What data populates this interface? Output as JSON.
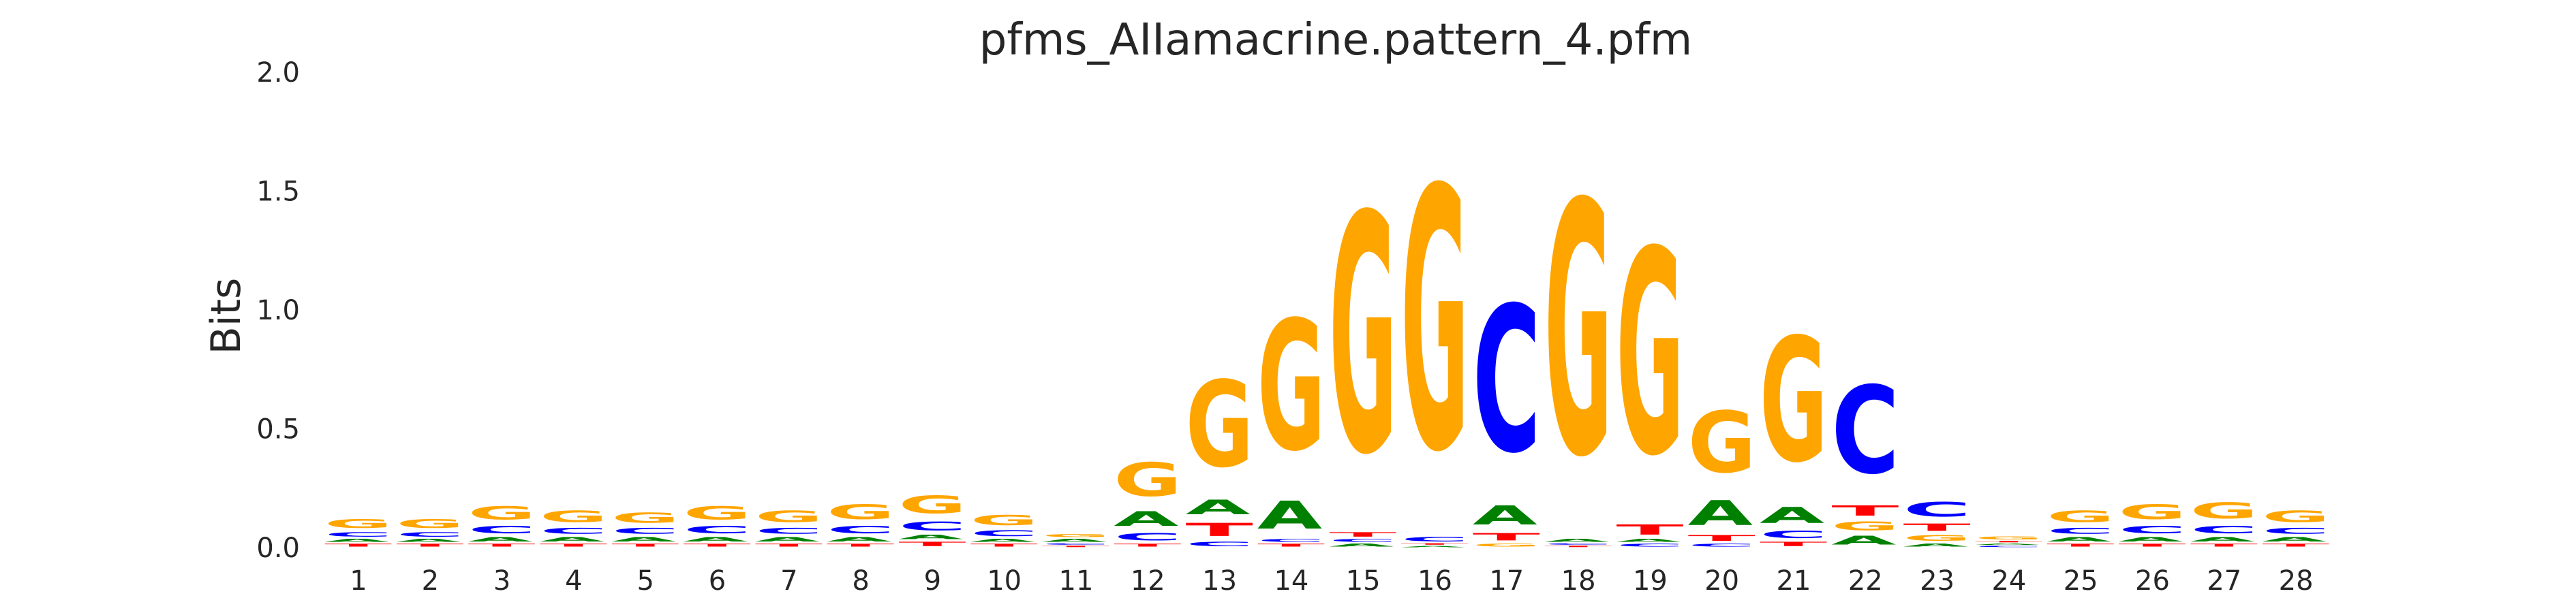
{
  "chart_data": {
    "type": "sequence-logo",
    "title": "pfms_AIIamacrine.pattern_4.pfm",
    "ylabel": "Bits",
    "xlabel": "",
    "ylim": [
      0,
      2.0
    ],
    "yticks": [
      "0.0",
      "0.5",
      "1.0",
      "1.5",
      "2.0"
    ],
    "ytick_values": [
      0,
      0.5,
      1.0,
      1.5,
      2.0
    ],
    "grid": false,
    "legend": "none",
    "letter_colors": {
      "A": "#008000",
      "C": "#0000ff",
      "G": "#ffa500",
      "T": "#ff0000"
    },
    "positions": [
      {
        "pos": "1",
        "stack": [
          [
            "T",
            0.02
          ],
          [
            "A",
            0.02
          ],
          [
            "C",
            0.03
          ],
          [
            "G",
            0.06
          ]
        ]
      },
      {
        "pos": "2",
        "stack": [
          [
            "T",
            0.02
          ],
          [
            "A",
            0.02
          ],
          [
            "C",
            0.03
          ],
          [
            "G",
            0.06
          ]
        ]
      },
      {
        "pos": "3",
        "stack": [
          [
            "T",
            0.02
          ],
          [
            "A",
            0.03
          ],
          [
            "C",
            0.05
          ],
          [
            "G",
            0.09
          ]
        ]
      },
      {
        "pos": "4",
        "stack": [
          [
            "T",
            0.02
          ],
          [
            "A",
            0.03
          ],
          [
            "C",
            0.04
          ],
          [
            "G",
            0.08
          ]
        ]
      },
      {
        "pos": "5",
        "stack": [
          [
            "T",
            0.02
          ],
          [
            "A",
            0.03
          ],
          [
            "C",
            0.04
          ],
          [
            "G",
            0.07
          ]
        ]
      },
      {
        "pos": "6",
        "stack": [
          [
            "T",
            0.02
          ],
          [
            "A",
            0.03
          ],
          [
            "C",
            0.05
          ],
          [
            "G",
            0.09
          ]
        ]
      },
      {
        "pos": "7",
        "stack": [
          [
            "T",
            0.02
          ],
          [
            "A",
            0.03
          ],
          [
            "C",
            0.04
          ],
          [
            "G",
            0.08
          ]
        ]
      },
      {
        "pos": "8",
        "stack": [
          [
            "T",
            0.02
          ],
          [
            "A",
            0.03
          ],
          [
            "C",
            0.05
          ],
          [
            "G",
            0.1
          ]
        ]
      },
      {
        "pos": "9",
        "stack": [
          [
            "T",
            0.03
          ],
          [
            "A",
            0.03
          ],
          [
            "C",
            0.06
          ],
          [
            "G",
            0.12
          ]
        ]
      },
      {
        "pos": "10",
        "stack": [
          [
            "T",
            0.02
          ],
          [
            "A",
            0.02
          ],
          [
            "C",
            0.04
          ],
          [
            "G",
            0.07
          ]
        ]
      },
      {
        "pos": "11",
        "stack": [
          [
            "T",
            0.01
          ],
          [
            "C",
            0.01
          ],
          [
            "A",
            0.02
          ],
          [
            "G",
            0.02
          ]
        ]
      },
      {
        "pos": "12",
        "stack": [
          [
            "T",
            0.02
          ],
          [
            "C",
            0.05
          ],
          [
            "A",
            0.1
          ],
          [
            "G",
            0.23
          ]
        ]
      },
      {
        "pos": "13",
        "stack": [
          [
            "C",
            0.03
          ],
          [
            "T",
            0.09
          ],
          [
            "A",
            0.1
          ],
          [
            "G",
            0.59
          ]
        ]
      },
      {
        "pos": "14",
        "stack": [
          [
            "T",
            0.02
          ],
          [
            "C",
            0.02
          ],
          [
            "A",
            0.19
          ],
          [
            "G",
            0.89
          ]
        ]
      },
      {
        "pos": "15",
        "stack": [
          [
            "A",
            0.02
          ],
          [
            "C",
            0.02
          ],
          [
            "T",
            0.03
          ],
          [
            "G",
            1.63
          ]
        ]
      },
      {
        "pos": "16",
        "stack": [
          [
            "A",
            0.01
          ],
          [
            "T",
            0.01
          ],
          [
            "C",
            0.03
          ],
          [
            "G",
            1.79
          ]
        ]
      },
      {
        "pos": "17",
        "stack": [
          [
            "G",
            0.02
          ],
          [
            "T",
            0.05
          ],
          [
            "A",
            0.13
          ],
          [
            "C",
            1.0
          ]
        ]
      },
      {
        "pos": "18",
        "stack": [
          [
            "T",
            0.01
          ],
          [
            "C",
            0.01
          ],
          [
            "A",
            0.02
          ],
          [
            "G",
            1.73
          ]
        ]
      },
      {
        "pos": "19",
        "stack": [
          [
            "C",
            0.02
          ],
          [
            "A",
            0.02
          ],
          [
            "T",
            0.07
          ],
          [
            "G",
            1.4
          ]
        ]
      },
      {
        "pos": "20",
        "stack": [
          [
            "C",
            0.02
          ],
          [
            "T",
            0.04
          ],
          [
            "A",
            0.17
          ],
          [
            "G",
            0.42
          ]
        ]
      },
      {
        "pos": "21",
        "stack": [
          [
            "T",
            0.03
          ],
          [
            "C",
            0.05
          ],
          [
            "A",
            0.11
          ],
          [
            "G",
            0.85
          ]
        ]
      },
      {
        "pos": "22",
        "stack": [
          [
            "A",
            0.06
          ],
          [
            "G",
            0.06
          ],
          [
            "T",
            0.07
          ],
          [
            "C",
            0.6
          ]
        ]
      },
      {
        "pos": "23",
        "stack": [
          [
            "A",
            0.02
          ],
          [
            "G",
            0.04
          ],
          [
            "T",
            0.05
          ],
          [
            "C",
            0.1
          ]
        ]
      },
      {
        "pos": "24",
        "stack": [
          [
            "C",
            0.01
          ],
          [
            "A",
            0.01
          ],
          [
            "T",
            0.01
          ],
          [
            "G",
            0.02
          ]
        ]
      },
      {
        "pos": "25",
        "stack": [
          [
            "T",
            0.02
          ],
          [
            "A",
            0.03
          ],
          [
            "C",
            0.04
          ],
          [
            "G",
            0.08
          ]
        ]
      },
      {
        "pos": "26",
        "stack": [
          [
            "T",
            0.02
          ],
          [
            "A",
            0.03
          ],
          [
            "C",
            0.05
          ],
          [
            "G",
            0.1
          ]
        ]
      },
      {
        "pos": "27",
        "stack": [
          [
            "T",
            0.02
          ],
          [
            "A",
            0.03
          ],
          [
            "C",
            0.05
          ],
          [
            "G",
            0.11
          ]
        ]
      },
      {
        "pos": "28",
        "stack": [
          [
            "T",
            0.02
          ],
          [
            "A",
            0.03
          ],
          [
            "C",
            0.04
          ],
          [
            "G",
            0.08
          ]
        ]
      }
    ]
  }
}
